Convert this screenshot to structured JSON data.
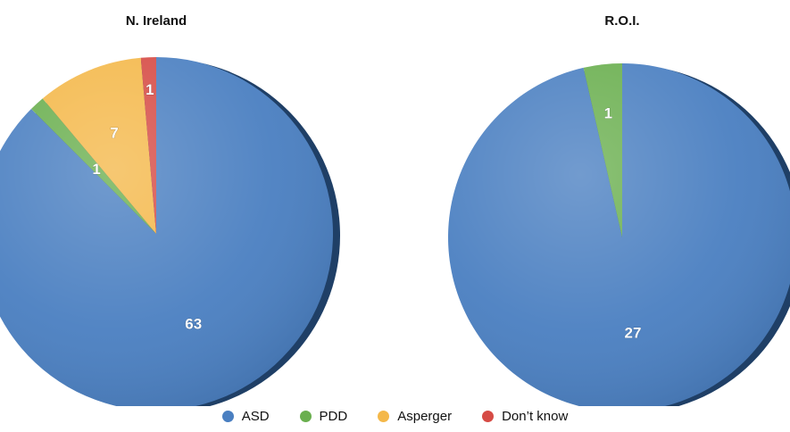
{
  "chart_data": [
    {
      "type": "pie",
      "title": "N. Ireland",
      "slices": [
        {
          "label": "ASD",
          "value": 63,
          "color": "#4a7fc1"
        },
        {
          "label": "PDD",
          "value": 1,
          "color": "#6aaf4f"
        },
        {
          "label": "Asperger",
          "value": 7,
          "color": "#f4b84a"
        },
        {
          "label": "Don't know",
          "value": 1,
          "color": "#d64b45"
        }
      ]
    },
    {
      "type": "pie",
      "title": "R.O.I.",
      "slices": [
        {
          "label": "ASD",
          "value": 27,
          "color": "#4a7fc1"
        },
        {
          "label": "PDD",
          "value": 1,
          "color": "#6aaf4f"
        }
      ]
    }
  ],
  "legend": {
    "placement": "bottom",
    "items": [
      {
        "label": "ASD",
        "color": "#4a7fc1"
      },
      {
        "label": "PDD",
        "color": "#6aaf4f"
      },
      {
        "label": "Asperger",
        "color": "#f4b84a"
      },
      {
        "label": "Don’t know",
        "color": "#d64b45"
      }
    ]
  }
}
